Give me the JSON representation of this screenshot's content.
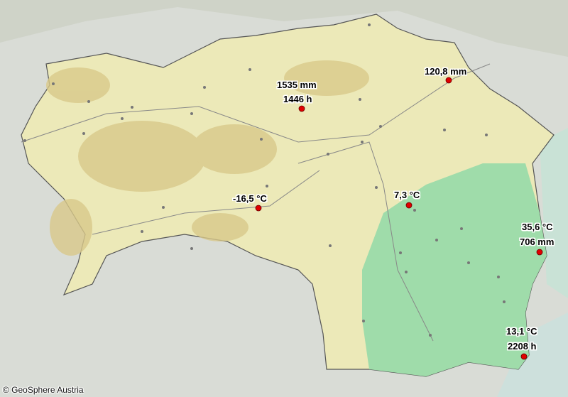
{
  "map": {
    "colors": {
      "background": "#d9dcd6",
      "region": "#ece9b8",
      "highland": "#d9c98a",
      "lowland": "#9fdcaa",
      "marker": "#e00000",
      "town": "#777777",
      "border": "#555555"
    },
    "markers": [
      {
        "lines": [
          "1535 mm",
          "1446 h"
        ]
      },
      {
        "lines": [
          "120,8 mm"
        ]
      },
      {
        "lines": [
          "-16,5 °C"
        ]
      },
      {
        "lines": [
          "7,3 °C"
        ]
      },
      {
        "lines": [
          "35,6 °C",
          "706 mm"
        ]
      },
      {
        "lines": [
          "13,1 °C",
          "2208 h"
        ]
      }
    ],
    "copyright": "© GeoSphere Austria"
  }
}
